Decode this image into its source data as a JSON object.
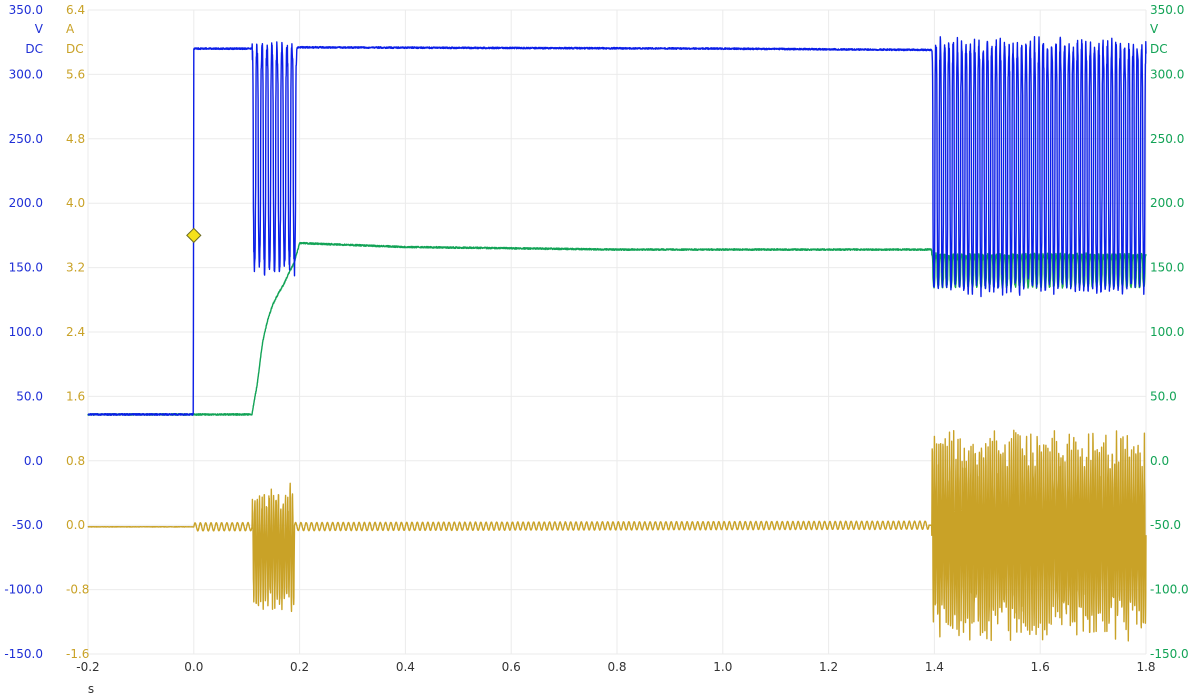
{
  "chart_data": {
    "type": "line",
    "grid": true,
    "x": {
      "unit": "s",
      "range": [
        -0.2,
        1.8
      ],
      "ticks": [
        "-0.2",
        "0.0",
        "0.2",
        "0.4",
        "0.6",
        "0.8",
        "1.0",
        "1.2",
        "1.4",
        "1.6",
        "1.8"
      ]
    },
    "axes": {
      "left_voltage": {
        "unit": "V",
        "coupling": "DC",
        "range": [
          -150,
          350
        ],
        "color": "#1f2fd6",
        "ticks": [
          "350.0",
          "300.0",
          "250.0",
          "200.0",
          "150.0",
          "100.0",
          "50.0",
          "0.0",
          "-50.0",
          "-100.0",
          "-150.0"
        ]
      },
      "left_current": {
        "unit": "A",
        "coupling": "DC",
        "range": [
          -1.6,
          6.4
        ],
        "color": "#c9a227",
        "ticks": [
          "6.4",
          "5.6",
          "4.8",
          "4.0",
          "3.2",
          "2.4",
          "1.6",
          "0.8",
          "0.0",
          "-0.8",
          "-1.6"
        ]
      },
      "right_voltage": {
        "unit": "V",
        "coupling": "DC",
        "range": [
          -150,
          350
        ],
        "color": "#12a356",
        "ticks": [
          "350.0",
          "300.0",
          "250.0",
          "200.0",
          "150.0",
          "100.0",
          "50.0",
          "0.0",
          "-50.0",
          "-100.0",
          "-150.0"
        ]
      }
    },
    "series": [
      {
        "key": "blue",
        "color": "#0b1ee8",
        "axis": "left_voltage",
        "points": [
          [
            -0.2,
            36
          ],
          [
            -0.001,
            36
          ],
          [
            0.0,
            320
          ],
          [
            0.11,
            320
          ],
          [
            0.19,
            320
          ],
          [
            0.2,
            321
          ],
          [
            1.0,
            320
          ],
          [
            1.39,
            319
          ]
        ],
        "oscillations": [
          {
            "t_start": 0.11,
            "t_end": 0.195,
            "high": 321,
            "low": 150,
            "cycles": 9
          },
          {
            "t_start": 1.395,
            "t_end": 1.8,
            "high": 322,
            "low": 135,
            "cycles": 50
          }
        ]
      },
      {
        "key": "green",
        "color": "#12a356",
        "axis": "right_voltage",
        "points": [
          [
            -0.2,
            36
          ],
          [
            0.11,
            36
          ],
          [
            0.12,
            60
          ],
          [
            0.13,
            92
          ],
          [
            0.14,
            110
          ],
          [
            0.15,
            122
          ],
          [
            0.16,
            130
          ],
          [
            0.17,
            137
          ],
          [
            0.18,
            146
          ],
          [
            0.19,
            154
          ],
          [
            0.2,
            169
          ],
          [
            0.4,
            166
          ],
          [
            0.8,
            164
          ],
          [
            1.2,
            164
          ],
          [
            1.39,
            164
          ]
        ],
        "oscillations": [
          {
            "t_start": 1.395,
            "t_end": 1.8,
            "high": 160,
            "low": 135,
            "cycles": 50
          }
        ]
      },
      {
        "key": "current",
        "color": "#c9a227",
        "axis": "left_current",
        "points": [
          [
            -0.2,
            -0.02
          ],
          [
            0.0,
            -0.02
          ],
          [
            1.39,
            0.0
          ],
          [
            1.8,
            0.0
          ]
        ],
        "ripple": {
          "t_start": 0.0,
          "t_end": 1.39,
          "amplitude": 0.05,
          "period": 0.01
        },
        "bursts": [
          {
            "t_start": 0.11,
            "t_end": 0.19,
            "high": 0.55,
            "low": -1.1,
            "cycles": 9
          },
          {
            "t_start": 1.395,
            "t_end": 1.8,
            "high": 1.2,
            "low": -1.45,
            "cycles": 50
          }
        ]
      }
    ],
    "trigger_marker": {
      "x": 0.0,
      "y": 175,
      "axis": "left_voltage",
      "color": "#f5e11a"
    }
  }
}
